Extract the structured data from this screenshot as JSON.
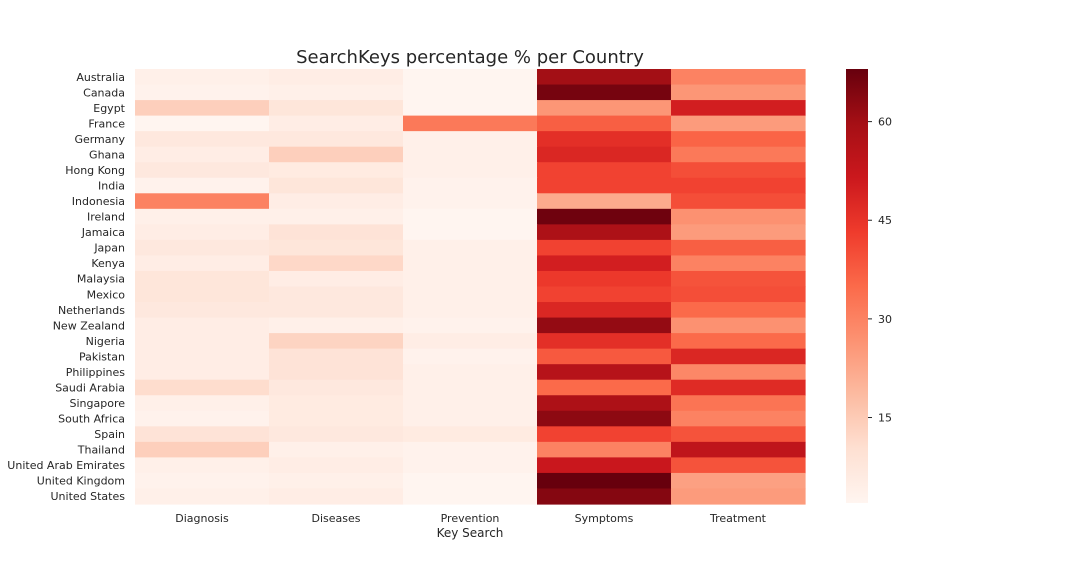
{
  "chart_data": {
    "type": "heatmap",
    "title": "SearchKeys percentage % per Country",
    "xlabel": "Key Search",
    "ylabel": "",
    "x_categories": [
      "Diagnosis",
      "Diseases",
      "Prevention",
      "Symptoms",
      "Treatment"
    ],
    "y_categories": [
      "Australia",
      "Canada",
      "Egypt",
      "France",
      "Germany",
      "Ghana",
      "Hong Kong",
      "India",
      "Indonesia",
      "Ireland",
      "Jamaica",
      "Japan",
      "Kenya",
      "Malaysia",
      "Mexico",
      "Netherlands",
      "New Zealand",
      "Nigeria",
      "Pakistan",
      "Philippines",
      "Saudi Arabia",
      "Singapore",
      "South Africa",
      "Spain",
      "Thailand",
      "United Arab Emirates",
      "United Kingdom",
      "United States"
    ],
    "values": [
      [
        4,
        5,
        2,
        60,
        30
      ],
      [
        3,
        4,
        2,
        66,
        26
      ],
      [
        14,
        8,
        2,
        26,
        50
      ],
      [
        2,
        5,
        32,
        37,
        25
      ],
      [
        7,
        7,
        4,
        46,
        36
      ],
      [
        5,
        14,
        4,
        48,
        32
      ],
      [
        7,
        6,
        4,
        42,
        40
      ],
      [
        3,
        8,
        3,
        42,
        42
      ],
      [
        30,
        5,
        3,
        22,
        40
      ],
      [
        4,
        4,
        2,
        67,
        27
      ],
      [
        5,
        9,
        2,
        58,
        25
      ],
      [
        7,
        8,
        4,
        42,
        37
      ],
      [
        5,
        12,
        4,
        50,
        30
      ],
      [
        8,
        5,
        4,
        44,
        39
      ],
      [
        8,
        7,
        4,
        42,
        40
      ],
      [
        7,
        7,
        4,
        48,
        35
      ],
      [
        5,
        4,
        3,
        62,
        27
      ],
      [
        5,
        13,
        5,
        46,
        35
      ],
      [
        5,
        9,
        3,
        38,
        48
      ],
      [
        5,
        9,
        4,
        56,
        29
      ],
      [
        11,
        7,
        4,
        35,
        47
      ],
      [
        4,
        6,
        4,
        58,
        33
      ],
      [
        3,
        6,
        4,
        63,
        30
      ],
      [
        9,
        7,
        6,
        42,
        39
      ],
      [
        14,
        4,
        3,
        30,
        54
      ],
      [
        4,
        5,
        3,
        52,
        39
      ],
      [
        3,
        4,
        2,
        68,
        24
      ],
      [
        4,
        5,
        2,
        64,
        25
      ]
    ],
    "colormap": "Reds",
    "colorbar": {
      "min": 2,
      "max": 68,
      "ticks": [
        15,
        30,
        45,
        60
      ]
    },
    "grid": false,
    "legend": "none"
  }
}
